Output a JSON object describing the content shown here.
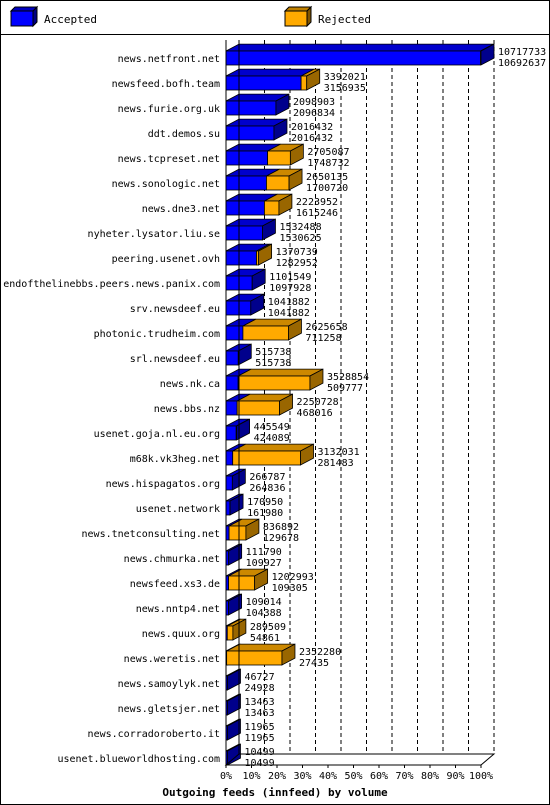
{
  "chart_data": {
    "type": "bar",
    "orientation": "horizontal",
    "stacked": true,
    "three_d": true,
    "title": "Outgoing feeds (innfeed) by volume",
    "legend_position": "top",
    "xlim": [
      0,
      100
    ],
    "xunit": "%",
    "x_ticks": [
      "0%",
      "10%",
      "20%",
      "30%",
      "40%",
      "50%",
      "60%",
      "70%",
      "80%",
      "90%",
      "100%"
    ],
    "series": [
      {
        "name": "Accepted",
        "color": "#0000ff"
      },
      {
        "name": "Rejected",
        "color": "#ffaa00"
      }
    ],
    "categories": [
      "news.netfront.net",
      "newsfeed.bofh.team",
      "news.furie.org.uk",
      "ddt.demos.su",
      "news.tcpreset.net",
      "news.sonologic.net",
      "news.dne3.net",
      "nyheter.lysator.liu.se",
      "peering.usenet.ovh",
      "endofthelinebbs.peers.news.panix.com",
      "srv.newsdeef.eu",
      "photonic.trudheim.com",
      "srl.newsdeef.eu",
      "news.nk.ca",
      "news.bbs.nz",
      "usenet.goja.nl.eu.org",
      "m68k.vk3heg.net",
      "news.hispagatos.org",
      "usenet.network",
      "news.tnetconsulting.net",
      "news.chmurka.net",
      "newsfeed.xs3.de",
      "news.nntp4.net",
      "news.quux.org",
      "news.weretis.net",
      "news.samoylyk.net",
      "news.gletsjer.net",
      "news.corradoroberto.it",
      "usenet.blueworldhosting.com"
    ],
    "offered": [
      10717733,
      3392021,
      2098903,
      2016432,
      2705087,
      2650135,
      2223952,
      1532488,
      1370739,
      1101549,
      1041882,
      2625658,
      515738,
      3528854,
      2250728,
      445549,
      3132031,
      266787,
      170950,
      836892,
      111790,
      1202993,
      109014,
      289509,
      2352280,
      46727,
      13463,
      11965,
      10499
    ],
    "accepted": [
      10692637,
      3156935,
      2096834,
      2016432,
      1748732,
      1700720,
      1615246,
      1530625,
      1282952,
      1097928,
      1041882,
      711258,
      515738,
      509777,
      468016,
      424089,
      281483,
      264836,
      161980,
      129678,
      109927,
      109305,
      104388,
      54861,
      27435,
      24928,
      13463,
      11965,
      10499
    ]
  }
}
